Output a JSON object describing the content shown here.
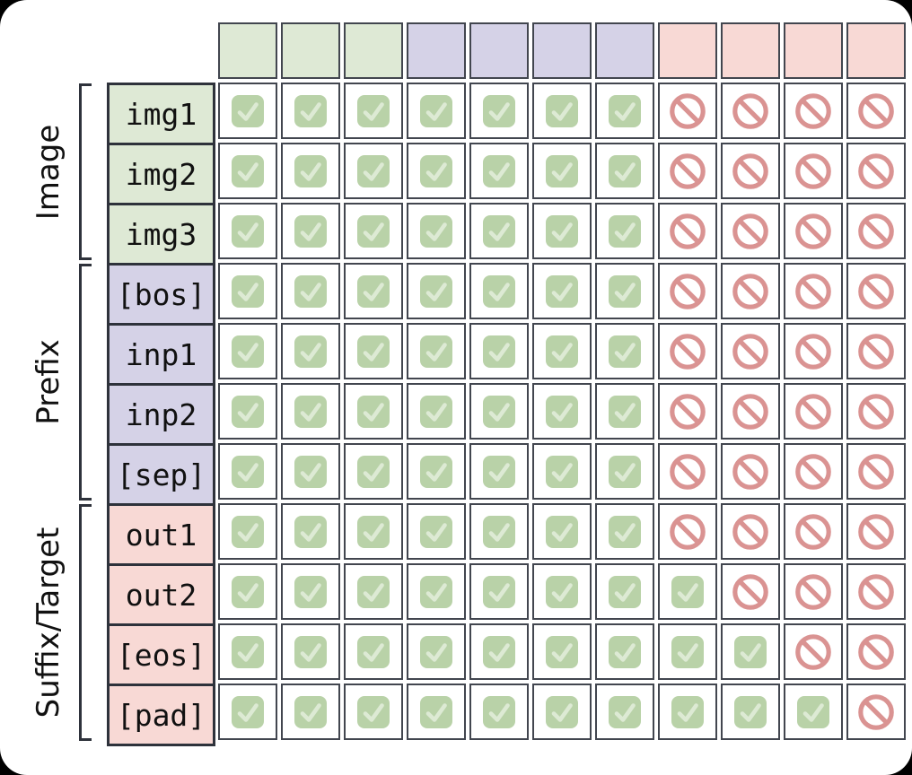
{
  "colors": {
    "page_bg": "#000000",
    "card_bg": "#ffffff",
    "image_fill": "#dee9d5",
    "prefix_fill": "#d5d2e7",
    "suffix_fill": "#f8d9d5",
    "check_fill": "#b9d2a8",
    "check_stroke": "#ddead4",
    "block_stroke": "#da9392",
    "cell_border": "#42464f",
    "label_border": "#2e323b",
    "text": "#111111"
  },
  "column_header": {
    "groups": [
      "image",
      "image",
      "image",
      "prefix",
      "prefix",
      "prefix",
      "prefix",
      "suffix",
      "suffix",
      "suffix",
      "suffix"
    ]
  },
  "row_groups": [
    {
      "id": "image",
      "label": "Image",
      "rows": [
        {
          "token": "img1",
          "mask": [
            1,
            1,
            1,
            1,
            1,
            1,
            1,
            0,
            0,
            0,
            0
          ]
        },
        {
          "token": "img2",
          "mask": [
            1,
            1,
            1,
            1,
            1,
            1,
            1,
            0,
            0,
            0,
            0
          ]
        },
        {
          "token": "img3",
          "mask": [
            1,
            1,
            1,
            1,
            1,
            1,
            1,
            0,
            0,
            0,
            0
          ]
        }
      ]
    },
    {
      "id": "prefix",
      "label": "Prefix",
      "rows": [
        {
          "token": "[bos]",
          "mask": [
            1,
            1,
            1,
            1,
            1,
            1,
            1,
            0,
            0,
            0,
            0
          ]
        },
        {
          "token": "inp1",
          "mask": [
            1,
            1,
            1,
            1,
            1,
            1,
            1,
            0,
            0,
            0,
            0
          ]
        },
        {
          "token": "inp2",
          "mask": [
            1,
            1,
            1,
            1,
            1,
            1,
            1,
            0,
            0,
            0,
            0
          ]
        },
        {
          "token": "[sep]",
          "mask": [
            1,
            1,
            1,
            1,
            1,
            1,
            1,
            0,
            0,
            0,
            0
          ]
        }
      ]
    },
    {
      "id": "suffix",
      "label": "Suffix/Target",
      "rows": [
        {
          "token": "out1",
          "mask": [
            1,
            1,
            1,
            1,
            1,
            1,
            1,
            0,
            0,
            0,
            0
          ]
        },
        {
          "token": "out2",
          "mask": [
            1,
            1,
            1,
            1,
            1,
            1,
            1,
            1,
            0,
            0,
            0
          ]
        },
        {
          "token": "[eos]",
          "mask": [
            1,
            1,
            1,
            1,
            1,
            1,
            1,
            1,
            1,
            0,
            0
          ]
        },
        {
          "token": "[pad]",
          "mask": [
            1,
            1,
            1,
            1,
            1,
            1,
            1,
            1,
            1,
            1,
            0
          ]
        }
      ]
    }
  ],
  "icons": {
    "allowed": "check-icon",
    "blocked": "no-entry-icon"
  }
}
